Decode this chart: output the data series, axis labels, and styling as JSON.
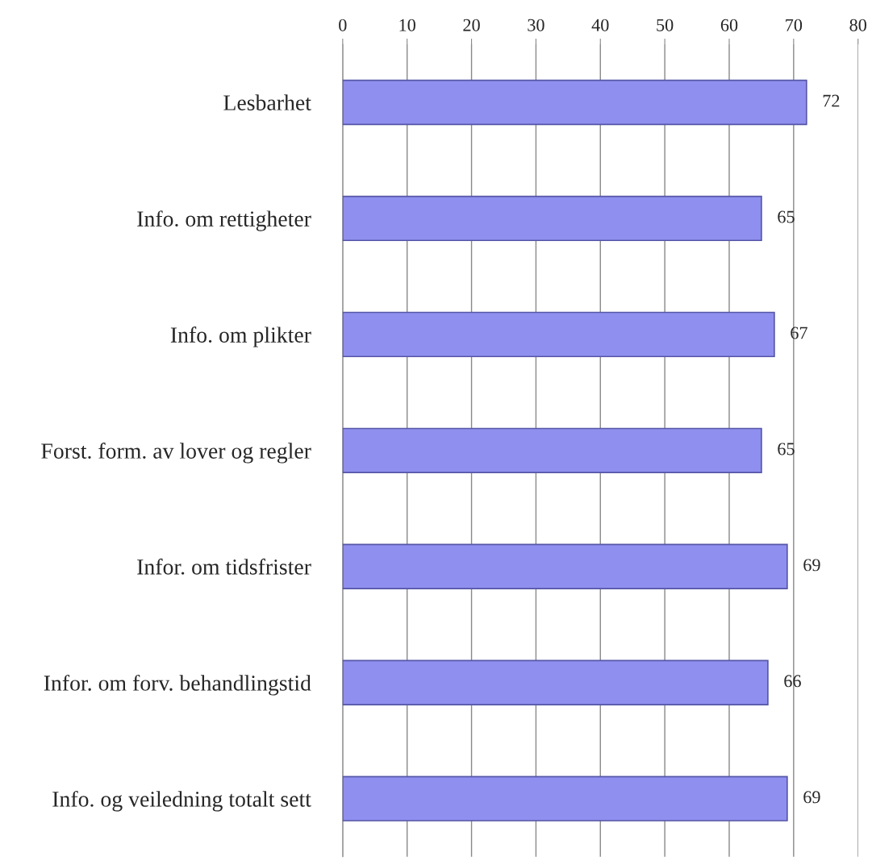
{
  "chart_data": {
    "type": "bar",
    "orientation": "horizontal",
    "categories": [
      "Lesbarhet",
      "Info. om rettigheter",
      "Info. om plikter",
      "Forst. form. av lover og regler",
      "Infor. om tidsfrister",
      "Infor. om forv. behandlingstid",
      "Info. og veiledning totalt sett"
    ],
    "values": [
      72,
      65,
      67,
      65,
      69,
      66,
      69
    ],
    "color": "#8f8fef",
    "xlim": [
      0,
      80
    ],
    "xticks": [
      0,
      10,
      20,
      30,
      40,
      50,
      60,
      70,
      80
    ],
    "grid": "x",
    "data_labels": true
  }
}
